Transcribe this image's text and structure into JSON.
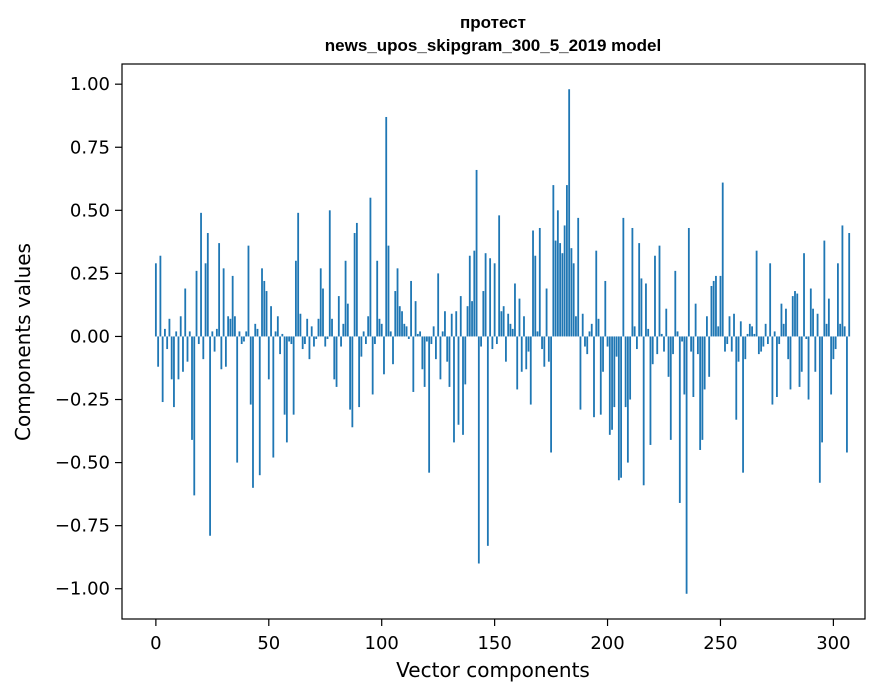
{
  "chart_data": {
    "type": "bar",
    "title": "протест",
    "subtitle": "news_upos_skipgram_300_5_2019 model",
    "xlabel": "Vector components",
    "ylabel": "Components values",
    "xlim": [
      -15,
      314
    ],
    "ylim": [
      -1.12,
      1.08
    ],
    "xticks": [
      0,
      50,
      100,
      150,
      200,
      250,
      300
    ],
    "xtick_labels": [
      "0",
      "50",
      "100",
      "150",
      "200",
      "250",
      "300"
    ],
    "yticks": [
      -1.0,
      -0.75,
      -0.5,
      -0.25,
      0.0,
      0.25,
      0.5,
      0.75,
      1.0
    ],
    "ytick_labels": [
      "−1.00",
      "−0.75",
      "−0.50",
      "−0.25",
      "0.00",
      "0.25",
      "0.50",
      "0.75",
      "1.00"
    ],
    "bar_color": "#1f77b4",
    "series": [
      {
        "name": "components",
        "values": [
          0.29,
          -0.12,
          0.32,
          -0.26,
          0.03,
          -0.05,
          0.07,
          -0.17,
          -0.28,
          0.02,
          -0.17,
          0.08,
          -0.14,
          0.19,
          -0.1,
          0.02,
          -0.41,
          -0.63,
          0.26,
          -0.03,
          0.49,
          -0.09,
          0.29,
          0.41,
          -0.79,
          0.02,
          -0.06,
          0.03,
          0.37,
          -0.13,
          0.27,
          -0.12,
          0.08,
          0.07,
          0.24,
          0.08,
          -0.5,
          0.02,
          -0.03,
          -0.02,
          0.02,
          0.36,
          -0.27,
          -0.6,
          0.05,
          0.03,
          -0.55,
          0.27,
          0.22,
          0.18,
          -0.17,
          0.12,
          -0.48,
          0.02,
          0.08,
          -0.07,
          0.01,
          -0.31,
          -0.42,
          -0.02,
          -0.03,
          -0.31,
          0.3,
          0.49,
          0.09,
          -0.05,
          -0.03,
          0.07,
          -0.09,
          0.04,
          -0.04,
          -0.01,
          0.07,
          0.27,
          0.19,
          -0.04,
          -0.01,
          0.5,
          0.07,
          -0.17,
          -0.2,
          0.16,
          -0.04,
          0.05,
          0.3,
          0.13,
          -0.29,
          -0.36,
          0.41,
          0.45,
          -0.28,
          -0.08,
          0.02,
          -0.03,
          0.08,
          0.55,
          -0.23,
          -0.03,
          0.3,
          0.07,
          0.05,
          -0.15,
          0.87,
          0.36,
          0.02,
          -0.11,
          0.18,
          0.27,
          0.12,
          0.1,
          0.05,
          0.04,
          -0.01,
          0.22,
          -0.22,
          0.14,
          0.01,
          0.02,
          -0.13,
          -0.2,
          -0.02,
          -0.54,
          -0.03,
          0.04,
          -0.09,
          0.25,
          -0.17,
          0.02,
          0.1,
          -0.1,
          -0.2,
          0.09,
          -0.42,
          0.1,
          -0.35,
          0.16,
          -0.39,
          -0.19,
          0.12,
          0.32,
          0.14,
          0.34,
          0.66,
          -0.9,
          -0.04,
          0.18,
          0.33,
          -0.83,
          0.31,
          -0.05,
          0.29,
          -0.03,
          0.48,
          0.1,
          0.12,
          -0.1,
          0.09,
          0.05,
          0.03,
          0.21,
          -0.21,
          0.15,
          -0.14,
          0.08,
          -0.13,
          -0.06,
          -0.27,
          0.42,
          0.32,
          0.02,
          0.43,
          -0.05,
          -0.12,
          0.19,
          -0.1,
          -0.46,
          0.6,
          0.38,
          0.5,
          0.37,
          0.33,
          0.44,
          0.6,
          0.98,
          0.35,
          0.29,
          0.08,
          0.47,
          -0.29,
          0.09,
          -0.04,
          -0.07,
          0.02,
          0.05,
          -0.32,
          0.34,
          0.07,
          -0.31,
          -0.14,
          0.22,
          -0.04,
          -0.39,
          -0.37,
          -0.28,
          -0.08,
          -0.57,
          -0.56,
          0.47,
          -0.28,
          -0.5,
          -0.25,
          0.43,
          0.04,
          -0.05,
          0.37,
          0.23,
          -0.59,
          0.21,
          0.03,
          -0.43,
          -0.11,
          0.32,
          -0.07,
          0.36,
          0.01,
          -0.06,
          0.11,
          -0.16,
          -0.41,
          -0.07,
          0.26,
          0.02,
          -0.66,
          -0.02,
          -0.23,
          -1.02,
          0.43,
          -0.06,
          -0.24,
          0.13,
          -0.07,
          -0.45,
          -0.41,
          -0.21,
          0.08,
          -0.16,
          0.2,
          0.22,
          0.24,
          0.04,
          0.24,
          0.61,
          -0.06,
          -0.03,
          0.08,
          -0.06,
          0.09,
          -0.33,
          -0.1,
          0.06,
          -0.54,
          -0.09,
          0.01,
          0.05,
          0.04,
          0.01,
          0.34,
          -0.07,
          -0.06,
          -0.04,
          0.05,
          -0.03,
          0.29,
          -0.27,
          0.02,
          -0.24,
          -0.03,
          0.13,
          0.05,
          0.11,
          -0.09,
          -0.21,
          0.16,
          0.18,
          0.17,
          -0.2,
          -0.14,
          0.33,
          -0.01,
          -0.25,
          0.19,
          0.11,
          -0.14,
          0.09,
          -0.58,
          -0.42,
          0.38,
          0.05,
          0.15,
          -0.23,
          -0.09,
          -0.05,
          0.29,
          0.05,
          0.44,
          0.04,
          -0.46,
          0.41
        ]
      }
    ]
  }
}
